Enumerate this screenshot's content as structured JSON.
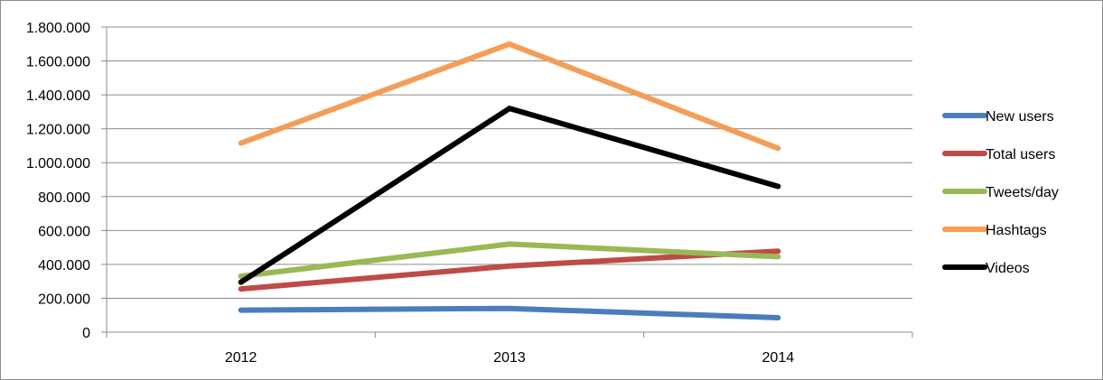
{
  "chart_data": {
    "type": "line",
    "categories": [
      "2012",
      "2013",
      "2014"
    ],
    "ylim": [
      0,
      1800000
    ],
    "y_ticks": [
      {
        "value": 0,
        "label": "0"
      },
      {
        "value": 200000,
        "label": "200.000"
      },
      {
        "value": 400000,
        "label": "400.000"
      },
      {
        "value": 600000,
        "label": "600.000"
      },
      {
        "value": 800000,
        "label": "800.000"
      },
      {
        "value": 1000000,
        "label": "1.000.000"
      },
      {
        "value": 1200000,
        "label": "1.200.000"
      },
      {
        "value": 1400000,
        "label": "1.400.000"
      },
      {
        "value": 1600000,
        "label": "1.600.000"
      },
      {
        "value": 1800000,
        "label": "1.800.000"
      }
    ],
    "grid": true,
    "legend_position": "right",
    "series": [
      {
        "name": "New users",
        "color": "#4a7ebb",
        "values": [
          130000,
          140000,
          85000
        ]
      },
      {
        "name": "Total users",
        "color": "#be4b48",
        "values": [
          255000,
          390000,
          478000
        ]
      },
      {
        "name": "Tweets/day",
        "color": "#98b954",
        "values": [
          330000,
          520000,
          445000
        ]
      },
      {
        "name": "Hashtags",
        "color": "#f59d56",
        "values": [
          1115000,
          1700000,
          1085000
        ]
      },
      {
        "name": "Videos",
        "color": "#000000",
        "values": [
          295000,
          1320000,
          860000
        ]
      }
    ]
  }
}
